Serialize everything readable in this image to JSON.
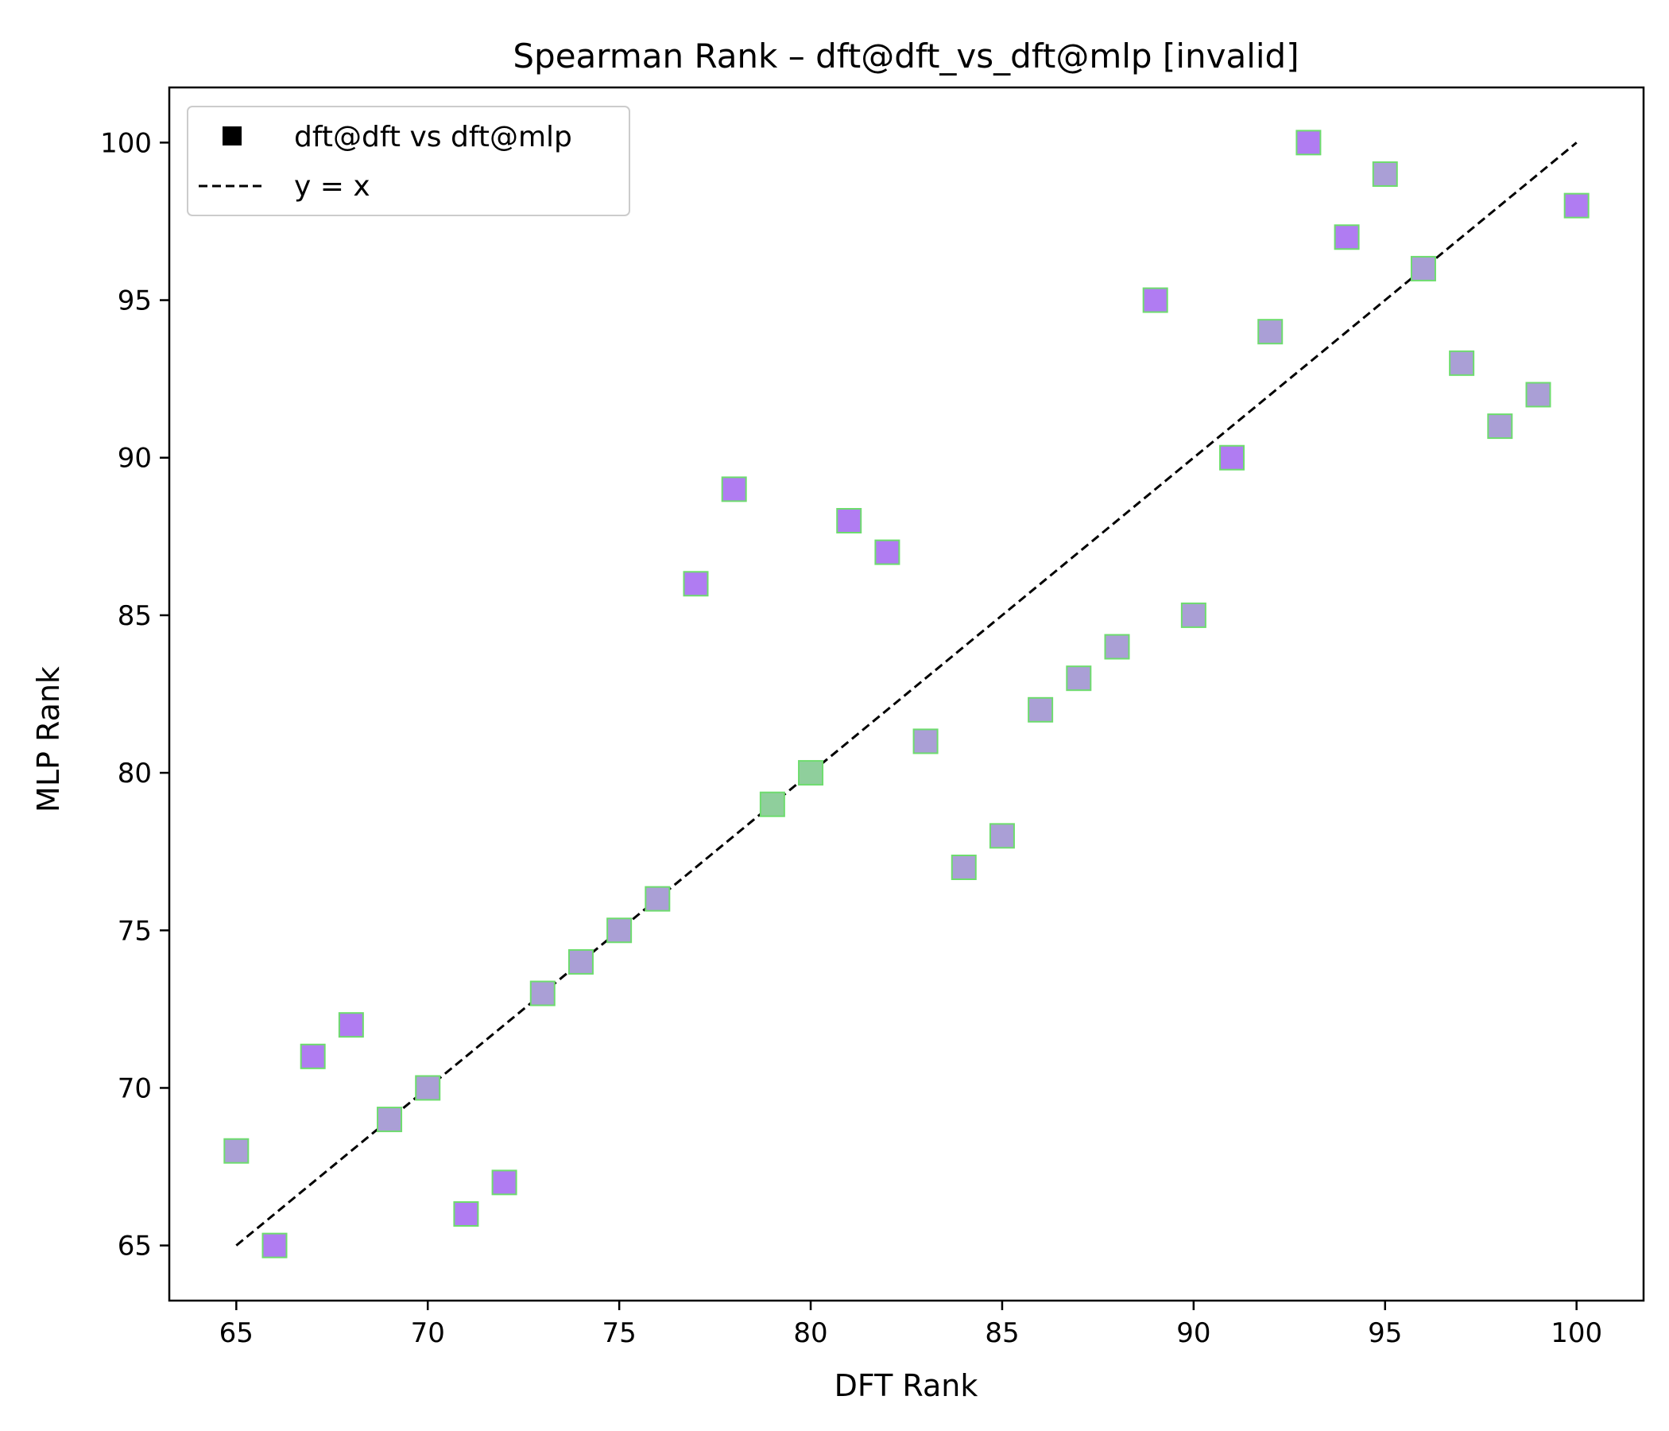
{
  "chart_data": {
    "type": "scatter",
    "title": "Spearman Rank – dft@dft_vs_dft@mlp [invalid]",
    "xlabel": "DFT Rank",
    "ylabel": "MLP Rank",
    "xlim": [
      63.25,
      101.75
    ],
    "ylim": [
      63.25,
      101.75
    ],
    "xticks": [
      65,
      70,
      75,
      80,
      85,
      90,
      95,
      100
    ],
    "yticks": [
      65,
      70,
      75,
      80,
      85,
      90,
      95,
      100
    ],
    "grid": false,
    "legend_position": "upper-left",
    "series": [
      {
        "name": "dft@dft vs dft@mlp",
        "marker": "square",
        "edge_color": "#6edc6e",
        "points": [
          {
            "x": 65,
            "y": 68,
            "color": "#aa9fd6"
          },
          {
            "x": 66,
            "y": 65,
            "color": "#b07cf2"
          },
          {
            "x": 67,
            "y": 71,
            "color": "#b07cf2"
          },
          {
            "x": 68,
            "y": 72,
            "color": "#b07cf2"
          },
          {
            "x": 69,
            "y": 69,
            "color": "#aa9fd6"
          },
          {
            "x": 70,
            "y": 70,
            "color": "#aa9fd6"
          },
          {
            "x": 71,
            "y": 66,
            "color": "#b07cf2"
          },
          {
            "x": 72,
            "y": 67,
            "color": "#b07cf2"
          },
          {
            "x": 73,
            "y": 73,
            "color": "#aa9fd6"
          },
          {
            "x": 74,
            "y": 74,
            "color": "#aa9fd6"
          },
          {
            "x": 75,
            "y": 75,
            "color": "#aa9fd6"
          },
          {
            "x": 76,
            "y": 76,
            "color": "#aa9fd6"
          },
          {
            "x": 77,
            "y": 86,
            "color": "#b07cf2"
          },
          {
            "x": 78,
            "y": 89,
            "color": "#b07cf2"
          },
          {
            "x": 79,
            "y": 79,
            "color": "#8fcf9c"
          },
          {
            "x": 80,
            "y": 80,
            "color": "#8fcf9c"
          },
          {
            "x": 81,
            "y": 88,
            "color": "#b07cf2"
          },
          {
            "x": 82,
            "y": 87,
            "color": "#b07cf2"
          },
          {
            "x": 83,
            "y": 81,
            "color": "#aa9fd6"
          },
          {
            "x": 84,
            "y": 77,
            "color": "#aa9fd6"
          },
          {
            "x": 85,
            "y": 78,
            "color": "#aa9fd6"
          },
          {
            "x": 86,
            "y": 82,
            "color": "#aa9fd6"
          },
          {
            "x": 87,
            "y": 83,
            "color": "#aa9fd6"
          },
          {
            "x": 88,
            "y": 84,
            "color": "#aa9fd6"
          },
          {
            "x": 89,
            "y": 95,
            "color": "#b07cf2"
          },
          {
            "x": 90,
            "y": 85,
            "color": "#aa9fd6"
          },
          {
            "x": 91,
            "y": 90,
            "color": "#b07cf2"
          },
          {
            "x": 92,
            "y": 94,
            "color": "#aa9fd6"
          },
          {
            "x": 93,
            "y": 100,
            "color": "#b07cf2"
          },
          {
            "x": 94,
            "y": 97,
            "color": "#b07cf2"
          },
          {
            "x": 95,
            "y": 99,
            "color": "#aa9fd6"
          },
          {
            "x": 96,
            "y": 96,
            "color": "#aa9fd6"
          },
          {
            "x": 97,
            "y": 93,
            "color": "#aa9fd6"
          },
          {
            "x": 98,
            "y": 91,
            "color": "#aa9fd6"
          },
          {
            "x": 99,
            "y": 92,
            "color": "#aa9fd6"
          },
          {
            "x": 100,
            "y": 98,
            "color": "#b07cf2"
          }
        ]
      },
      {
        "name": "y = x",
        "type": "line",
        "style": "dashed",
        "color": "#000000",
        "points": [
          {
            "x": 65,
            "y": 65
          },
          {
            "x": 100,
            "y": 100
          }
        ]
      }
    ]
  }
}
